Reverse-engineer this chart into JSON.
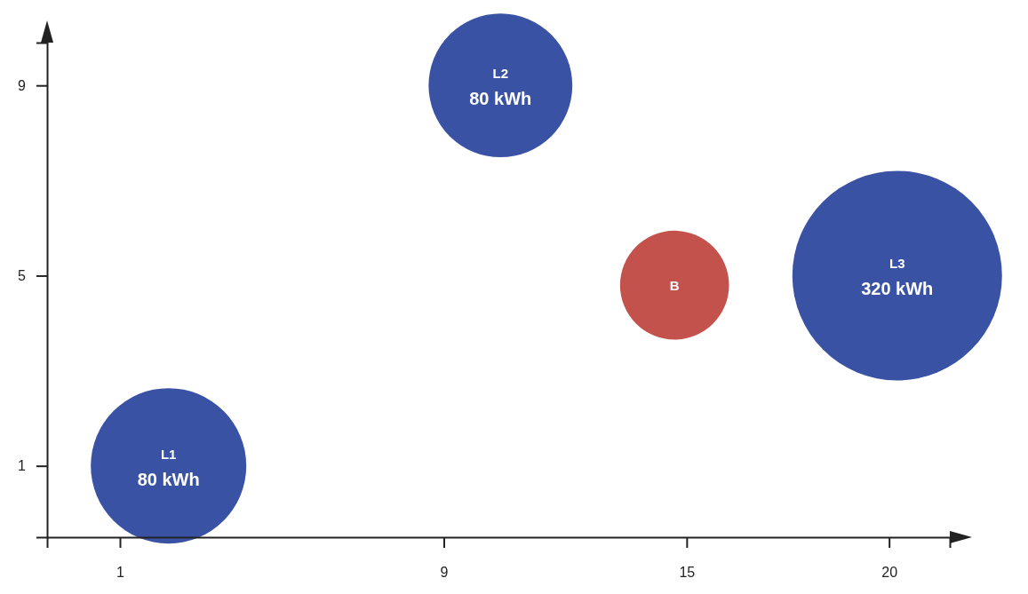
{
  "chart_data": {
    "type": "bubble",
    "x": [
      2.2,
      10.4,
      14.7,
      20.2
    ],
    "values": [
      1,
      9,
      4.8,
      5
    ],
    "sizes": [
      0.55,
      0.47,
      0.27,
      1
    ],
    "colors": [
      "#3a52a4",
      "#3a52a4",
      "#c4524c",
      "#3a52a4"
    ],
    "xlim": [
      -0.8,
      21.5
    ],
    "xticks": [
      1,
      9,
      15,
      20
    ],
    "ylim": [
      -0.5,
      9.9
    ],
    "yticks": [
      1,
      5,
      9
    ],
    "grid": false,
    "annotations": [
      {
        "text": "L1\n80 kWh",
        "x": 2.2,
        "y": 1
      },
      {
        "text": "L2\n80 kWh",
        "x": 10.4,
        "y": 9
      },
      {
        "text": "B",
        "x": 14.7,
        "y": 4.8
      },
      {
        "text": "L3\n320 kWh",
        "x": 20.2,
        "y": 5
      }
    ]
  }
}
